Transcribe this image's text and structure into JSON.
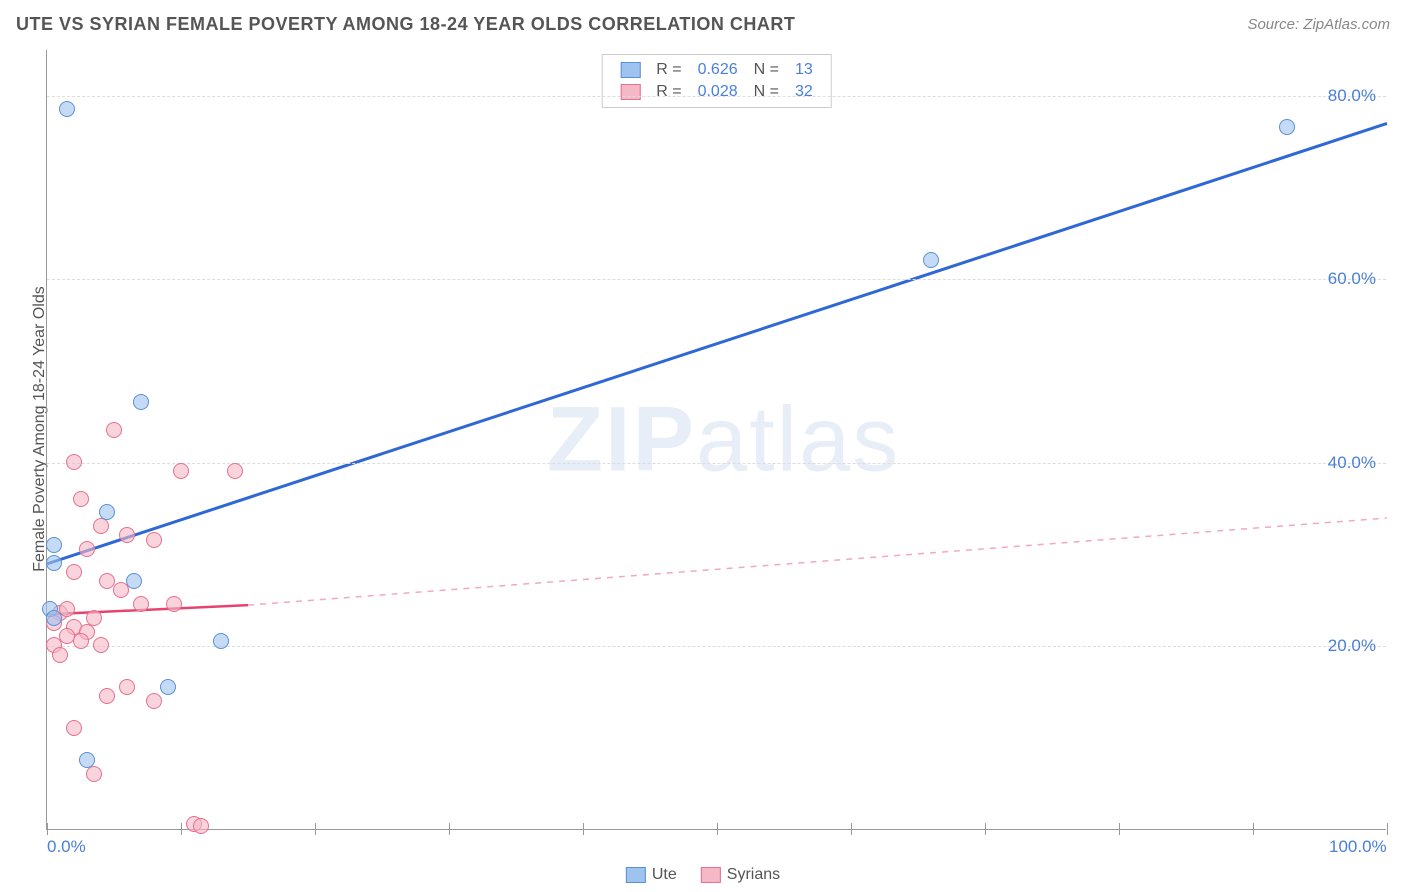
{
  "header": {
    "title": "UTE VS SYRIAN FEMALE POVERTY AMONG 18-24 YEAR OLDS CORRELATION CHART",
    "source": "Source: ZipAtlas.com"
  },
  "chart": {
    "type": "scatter",
    "ylabel": "Female Poverty Among 18-24 Year Olds",
    "background_color": "#ffffff",
    "axis_color": "#999999",
    "grid_color": "#dddddd",
    "label_color": "#555555",
    "tick_label_color": "#4a7fd8",
    "tick_fontsize": 17,
    "label_fontsize": 16,
    "title_fontsize": 18,
    "xlim": [
      0,
      100
    ],
    "ylim": [
      0,
      85
    ],
    "y_gridlines": [
      20,
      40,
      60,
      80
    ],
    "x_ticks_minor": [
      0,
      10,
      20,
      30,
      40,
      50,
      60,
      70,
      80,
      90,
      100
    ],
    "x_tick_labels": [
      {
        "x": 0,
        "label": "0.0%"
      },
      {
        "x": 100,
        "label": "100.0%"
      }
    ],
    "y_tick_labels": [
      {
        "y": 20,
        "label": "20.0%"
      },
      {
        "y": 40,
        "label": "40.0%"
      },
      {
        "y": 60,
        "label": "60.0%"
      },
      {
        "y": 80,
        "label": "80.0%"
      }
    ],
    "marker_radius": 8,
    "marker_fill_opacity": 0.35,
    "marker_stroke_width": 1.5,
    "watermark": {
      "text_bold": "ZIP",
      "text_rest": "atlas",
      "color": "#e8eef8",
      "fontsize": 92
    },
    "series": [
      {
        "name": "Ute",
        "color_fill": "#9ec3ef",
        "color_stroke": "#5a8fd6",
        "r_value": 0.626,
        "n_value": 13,
        "trend": {
          "x1": 0,
          "y1": 29,
          "x2": 100,
          "y2": 77,
          "stroke": "#2f68d6",
          "width": 3,
          "dash": "none"
        },
        "points": [
          {
            "x": 1.5,
            "y": 78.5
          },
          {
            "x": 92.5,
            "y": 76.5
          },
          {
            "x": 66,
            "y": 62
          },
          {
            "x": 7,
            "y": 46.5
          },
          {
            "x": 4.5,
            "y": 34.5
          },
          {
            "x": 0.5,
            "y": 31
          },
          {
            "x": 0.5,
            "y": 29
          },
          {
            "x": 6.5,
            "y": 27
          },
          {
            "x": 0.2,
            "y": 24
          },
          {
            "x": 13,
            "y": 20.5
          },
          {
            "x": 9,
            "y": 15.5
          },
          {
            "x": 3,
            "y": 7.5
          },
          {
            "x": 0.5,
            "y": 23
          }
        ]
      },
      {
        "name": "Syrians",
        "color_fill": "#f5b8c6",
        "color_stroke": "#e6708d",
        "r_value": 0.028,
        "n_value": 32,
        "trend_solid": {
          "x1": 0,
          "y1": 23.5,
          "x2": 15,
          "y2": 24.5,
          "stroke": "#e6446f",
          "width": 2.5
        },
        "trend_dash": {
          "x1": 15,
          "y1": 24.5,
          "x2": 100,
          "y2": 34,
          "stroke": "#f2a9bb",
          "width": 1.5,
          "dash": "6 6"
        },
        "points": [
          {
            "x": 5,
            "y": 43.5
          },
          {
            "x": 2,
            "y": 40
          },
          {
            "x": 14,
            "y": 39
          },
          {
            "x": 10,
            "y": 39
          },
          {
            "x": 2.5,
            "y": 36
          },
          {
            "x": 4,
            "y": 33
          },
          {
            "x": 6,
            "y": 32
          },
          {
            "x": 8,
            "y": 31.5
          },
          {
            "x": 3,
            "y": 30.5
          },
          {
            "x": 2,
            "y": 28
          },
          {
            "x": 4.5,
            "y": 27
          },
          {
            "x": 5.5,
            "y": 26
          },
          {
            "x": 7,
            "y": 24.5
          },
          {
            "x": 9.5,
            "y": 24.5
          },
          {
            "x": 1,
            "y": 23.5
          },
          {
            "x": 0.5,
            "y": 22.5
          },
          {
            "x": 2,
            "y": 22
          },
          {
            "x": 3,
            "y": 21.5
          },
          {
            "x": 1.5,
            "y": 21
          },
          {
            "x": 2.5,
            "y": 20.5
          },
          {
            "x": 4,
            "y": 20
          },
          {
            "x": 0.5,
            "y": 20
          },
          {
            "x": 1,
            "y": 19
          },
          {
            "x": 6,
            "y": 15.5
          },
          {
            "x": 8,
            "y": 14
          },
          {
            "x": 4.5,
            "y": 14.5
          },
          {
            "x": 2,
            "y": 11
          },
          {
            "x": 3.5,
            "y": 6
          },
          {
            "x": 11,
            "y": 0.5
          },
          {
            "x": 11.5,
            "y": 0.3
          },
          {
            "x": 1.5,
            "y": 24
          },
          {
            "x": 3.5,
            "y": 23
          }
        ]
      }
    ],
    "legend_top": {
      "rows": [
        {
          "swatch_fill": "#9ec3ef",
          "swatch_stroke": "#5a8fd6",
          "r_label": "R =",
          "r_value": "0.626",
          "n_label": "N =",
          "n_value": "13"
        },
        {
          "swatch_fill": "#f5b8c6",
          "swatch_stroke": "#e6708d",
          "r_label": "R =",
          "r_value": "0.028",
          "n_label": "N =",
          "n_value": "32"
        }
      ],
      "text_color": "#555555",
      "value_color": "#4a7fd8"
    },
    "legend_bottom": {
      "items": [
        {
          "swatch_fill": "#9ec3ef",
          "swatch_stroke": "#5a8fd6",
          "label": "Ute"
        },
        {
          "swatch_fill": "#f5b8c6",
          "swatch_stroke": "#e6708d",
          "label": "Syrians"
        }
      ]
    }
  }
}
